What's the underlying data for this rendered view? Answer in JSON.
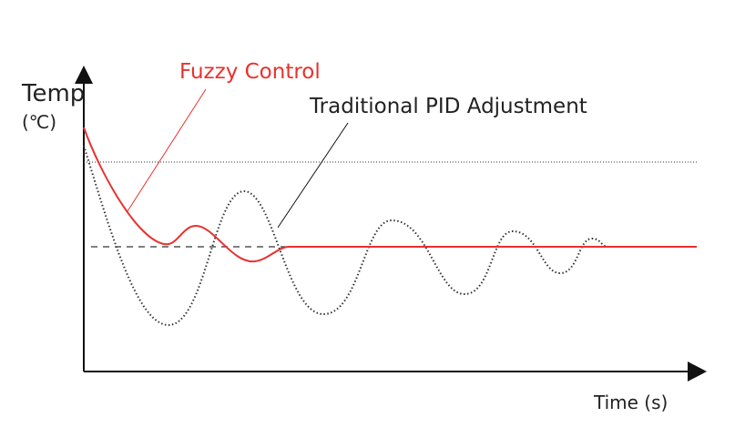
{
  "labels": {
    "y_axis": "Temp",
    "y_unit": "(℃)",
    "x_axis": "Time (s)",
    "fuzzy": "Fuzzy Control",
    "pid": "Traditional PID Adjustment"
  },
  "colors": {
    "fuzzy": "#e8312f",
    "pid": "#333333",
    "axis": "#111111"
  }
}
